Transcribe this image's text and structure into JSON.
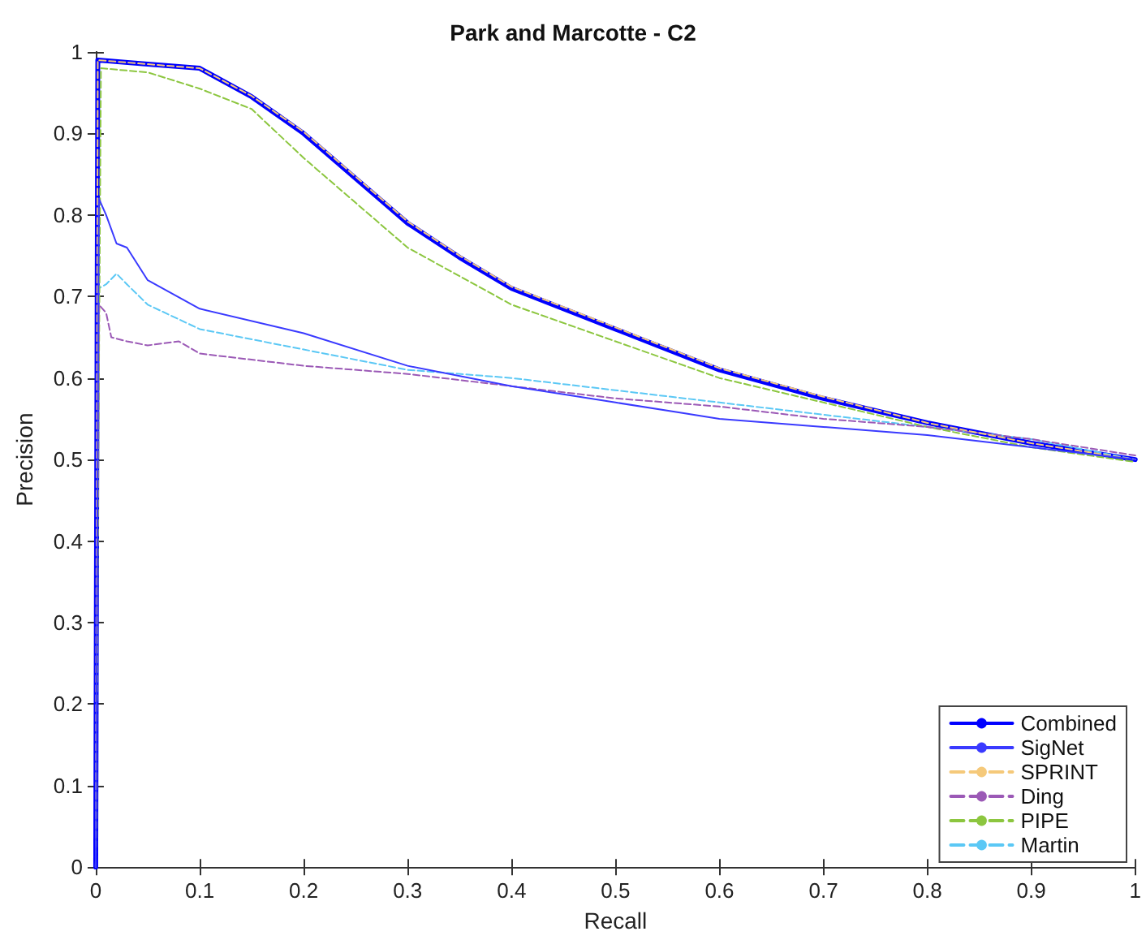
{
  "chart_data": {
    "type": "line",
    "title": "Park and Marcotte - C2",
    "xlabel": "Recall",
    "ylabel": "Precision",
    "xlim": [
      0,
      1
    ],
    "ylim": [
      0,
      1
    ],
    "xticks": [
      0,
      0.1,
      0.2,
      0.3,
      0.4,
      0.5,
      0.6,
      0.7,
      0.8,
      0.9,
      1
    ],
    "yticks": [
      0,
      0.1,
      0.2,
      0.3,
      0.4,
      0.5,
      0.6,
      0.7,
      0.8,
      0.9,
      1
    ],
    "grid": false,
    "legend": "bottom right",
    "marker": "none",
    "series": [
      {
        "name": "Combined",
        "color": "#0000ff",
        "line_style": "solid",
        "x": [
          0,
          0.002,
          0.05,
          0.1,
          0.15,
          0.2,
          0.25,
          0.3,
          0.35,
          0.4,
          0.5,
          0.6,
          0.7,
          0.8,
          0.9,
          1
        ],
        "values": [
          0,
          0.99,
          0.985,
          0.98,
          0.945,
          0.9,
          0.845,
          0.79,
          0.748,
          0.71,
          0.66,
          0.61,
          0.575,
          0.545,
          0.52,
          0.5
        ]
      },
      {
        "name": "SigNet",
        "color": "#3a3aff",
        "line_style": "solid",
        "x": [
          0,
          0.003,
          0.01,
          0.02,
          0.03,
          0.05,
          0.1,
          0.2,
          0.3,
          0.4,
          0.5,
          0.6,
          0.7,
          0.8,
          0.9,
          1
        ],
        "values": [
          0,
          0.82,
          0.8,
          0.765,
          0.76,
          0.72,
          0.685,
          0.655,
          0.615,
          0.59,
          0.57,
          0.55,
          0.54,
          0.53,
          0.515,
          0.5
        ]
      },
      {
        "name": "SPRINT",
        "color": "#f5c97a",
        "line_style": "dashed",
        "x": [
          0,
          0.002,
          0.05,
          0.1,
          0.15,
          0.2,
          0.25,
          0.3,
          0.35,
          0.4,
          0.5,
          0.6,
          0.7,
          0.8,
          0.9,
          1
        ],
        "values": [
          0,
          0.99,
          0.985,
          0.98,
          0.946,
          0.902,
          0.847,
          0.792,
          0.75,
          0.712,
          0.662,
          0.612,
          0.577,
          0.545,
          0.52,
          0.5
        ]
      },
      {
        "name": "Ding",
        "color": "#9b59b6",
        "line_style": "dashed",
        "x": [
          0,
          0.003,
          0.01,
          0.015,
          0.03,
          0.05,
          0.08,
          0.1,
          0.2,
          0.3,
          0.4,
          0.5,
          0.6,
          0.7,
          0.8,
          0.9,
          1
        ],
        "values": [
          0,
          0.69,
          0.68,
          0.65,
          0.645,
          0.64,
          0.645,
          0.63,
          0.615,
          0.605,
          0.59,
          0.575,
          0.565,
          0.55,
          0.54,
          0.525,
          0.505
        ]
      },
      {
        "name": "PIPE",
        "color": "#8cc63f",
        "line_style": "dashed",
        "x": [
          0,
          0.005,
          0.05,
          0.1,
          0.15,
          0.2,
          0.3,
          0.4,
          0.5,
          0.6,
          0.7,
          0.8,
          0.9,
          1
        ],
        "values": [
          0,
          0.98,
          0.975,
          0.955,
          0.93,
          0.87,
          0.76,
          0.69,
          0.645,
          0.6,
          0.57,
          0.54,
          0.515,
          0.497
        ]
      },
      {
        "name": "Martin",
        "color": "#5bc8f5",
        "line_style": "dashed",
        "x": [
          0,
          0.003,
          0.01,
          0.02,
          0.03,
          0.05,
          0.1,
          0.2,
          0.3,
          0.4,
          0.5,
          0.6,
          0.7,
          0.8,
          0.9,
          1
        ],
        "values": [
          0,
          0.71,
          0.715,
          0.728,
          0.715,
          0.69,
          0.66,
          0.635,
          0.61,
          0.6,
          0.585,
          0.57,
          0.555,
          0.54,
          0.525,
          0.5
        ]
      }
    ]
  }
}
